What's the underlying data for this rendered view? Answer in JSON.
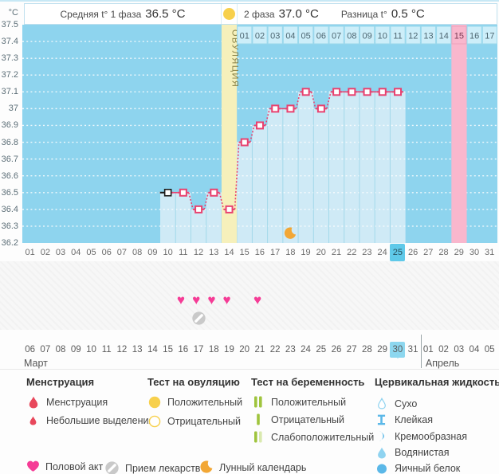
{
  "colors": {
    "plot_bg": "#8ed4ee",
    "bar_fill": "#cfeaf6",
    "bar_separator": "#a3d9ea",
    "gridline": "#ffffff",
    "ovulation_band": "#f6f0bb",
    "ovulation_text": "#8a8348",
    "predicted_band": "#f9b7cd",
    "line": "#e8416f",
    "first_marker": "#1a1a1a",
    "cell_bg": "#cdeef9",
    "cell_border": "#9bd8ec",
    "cell_text": "#4d6671",
    "cell_pink_bg": "#f9b7cd",
    "cell_pink_border": "#eda2bc",
    "selected_day_bg": "#5fc9e9",
    "today_bg": "#8dd7ef",
    "weekend_text": "#f4407e",
    "heart": "#f53c96",
    "moon": "#f2a735",
    "pill_gray": "#c9c9c9",
    "menses_red": "#e8485c",
    "test_yellow": "#f7d04c",
    "test_green": "#9fc43d",
    "test_green_pale": "#d9e9ae",
    "cf_blue": "#5bb8e8",
    "cf_blue_light": "#8fd3f0"
  },
  "header": {
    "unit": "°C",
    "phase1_label": "Средняя t° 1 фаза",
    "phase1_value": "36.5 °C",
    "phase2_label": "2 фаза",
    "phase2_value": "37.0 °C",
    "diff_label": "Разница t°",
    "diff_value": "0.5 °C"
  },
  "chart_data": {
    "type": "line",
    "title": "График базальной температуры",
    "ylabel": "°C",
    "ylim": [
      36.2,
      37.5
    ],
    "ytick_step": 0.1,
    "ytick_labels": [
      "37.5",
      "37.4",
      "37.3",
      "37.2",
      "37.1",
      "37",
      "36.9",
      "36.8",
      "36.7",
      "36.6",
      "36.5",
      "36.4",
      "36.3",
      "36.2"
    ],
    "x_cycle_days": [
      10,
      11,
      12,
      13,
      14,
      15,
      16,
      17,
      18,
      19,
      20,
      21,
      22,
      23,
      24,
      25
    ],
    "temperatures": [
      36.5,
      36.5,
      36.4,
      36.5,
      36.4,
      36.8,
      36.9,
      37.0,
      37.0,
      37.1,
      37.0,
      37.1,
      37.1,
      37.1,
      37.1,
      37.1
    ],
    "phase1_avg": 36.5,
    "phase2_avg": 37.0,
    "difference": 0.5,
    "ovulation_cycle_day": 14,
    "ovulation_band_label": "ОВУЛЯЦИЯ",
    "predicted_cycle_day": 29,
    "post_ovulation_labels": [
      "01",
      "02",
      "03",
      "04",
      "05",
      "06",
      "07",
      "08",
      "09",
      "10",
      "11",
      "12",
      "13",
      "14",
      "15",
      "16",
      "17"
    ],
    "post_ovulation_highlight": "15",
    "cycle_day_labels": [
      "01",
      "02",
      "03",
      "04",
      "05",
      "06",
      "07",
      "08",
      "09",
      "10",
      "11",
      "12",
      "13",
      "14",
      "15",
      "16",
      "17",
      "18",
      "19",
      "20",
      "21",
      "22",
      "23",
      "24",
      "25",
      "26",
      "27",
      "28",
      "29",
      "30",
      "31"
    ],
    "selected_cycle_day": "25",
    "moon_cycle_day": 18,
    "heart_cycle_days": [
      11,
      12,
      13,
      14,
      16
    ],
    "pill_cycle_day": 12,
    "grid": "dotted-horizontal",
    "legend_position": "bottom"
  },
  "calendar": {
    "month1": "Март",
    "month2": "Апрель",
    "today": "30",
    "days": [
      {
        "d": "06",
        "we": true
      },
      {
        "d": "07"
      },
      {
        "d": "08"
      },
      {
        "d": "09"
      },
      {
        "d": "10"
      },
      {
        "d": "11"
      },
      {
        "d": "12",
        "we": true
      },
      {
        "d": "13",
        "we": true
      },
      {
        "d": "14"
      },
      {
        "d": "15"
      },
      {
        "d": "16"
      },
      {
        "d": "17"
      },
      {
        "d": "18"
      },
      {
        "d": "19",
        "we": true
      },
      {
        "d": "20",
        "we": true
      },
      {
        "d": "21"
      },
      {
        "d": "22"
      },
      {
        "d": "23"
      },
      {
        "d": "24"
      },
      {
        "d": "25"
      },
      {
        "d": "26",
        "we": true
      },
      {
        "d": "27",
        "we": true
      },
      {
        "d": "28"
      },
      {
        "d": "29"
      },
      {
        "d": "30"
      },
      {
        "d": "31"
      },
      {
        "d": "01"
      },
      {
        "d": "02",
        "we": true
      },
      {
        "d": "03",
        "we": true
      },
      {
        "d": "04"
      },
      {
        "d": "05"
      }
    ]
  },
  "legend": {
    "menstruation": {
      "title": "Менструация",
      "items": [
        {
          "icon": "drop-red-large",
          "label": "Менструация"
        },
        {
          "icon": "drop-red-small",
          "label": "Небольшие выделения"
        }
      ]
    },
    "ovulation_test": {
      "title": "Тест на овуляцию",
      "items": [
        {
          "icon": "circle-yellow-filled",
          "label": "Положительный"
        },
        {
          "icon": "circle-yellow-outline",
          "label": "Отрицательный"
        }
      ]
    },
    "pregnancy_test": {
      "title": "Тест на беременность",
      "items": [
        {
          "icon": "bars-green-two",
          "label": "Положительный"
        },
        {
          "icon": "bar-green-one",
          "label": "Отрицательный"
        },
        {
          "icon": "bars-green-weak",
          "label": "Слабоположительный"
        }
      ]
    },
    "cervical_fluid": {
      "title": "Цервикальная жидкость",
      "items": [
        {
          "icon": "drop-blue-outline",
          "label": "Сухо"
        },
        {
          "icon": "spool-blue",
          "label": "Клейкая"
        },
        {
          "icon": "crescent-blue",
          "label": "Кремообразная"
        },
        {
          "icon": "drop-blue-light",
          "label": "Водянистая"
        },
        {
          "icon": "drop-blue-solid",
          "label": "Яичный белок"
        }
      ]
    }
  },
  "actions": [
    {
      "icon": "heart-pink",
      "label": "Половой акт"
    },
    {
      "icon": "pill-gray",
      "label": "Прием лекарств"
    },
    {
      "icon": "moon-orange",
      "label": "Лунный календарь"
    }
  ]
}
